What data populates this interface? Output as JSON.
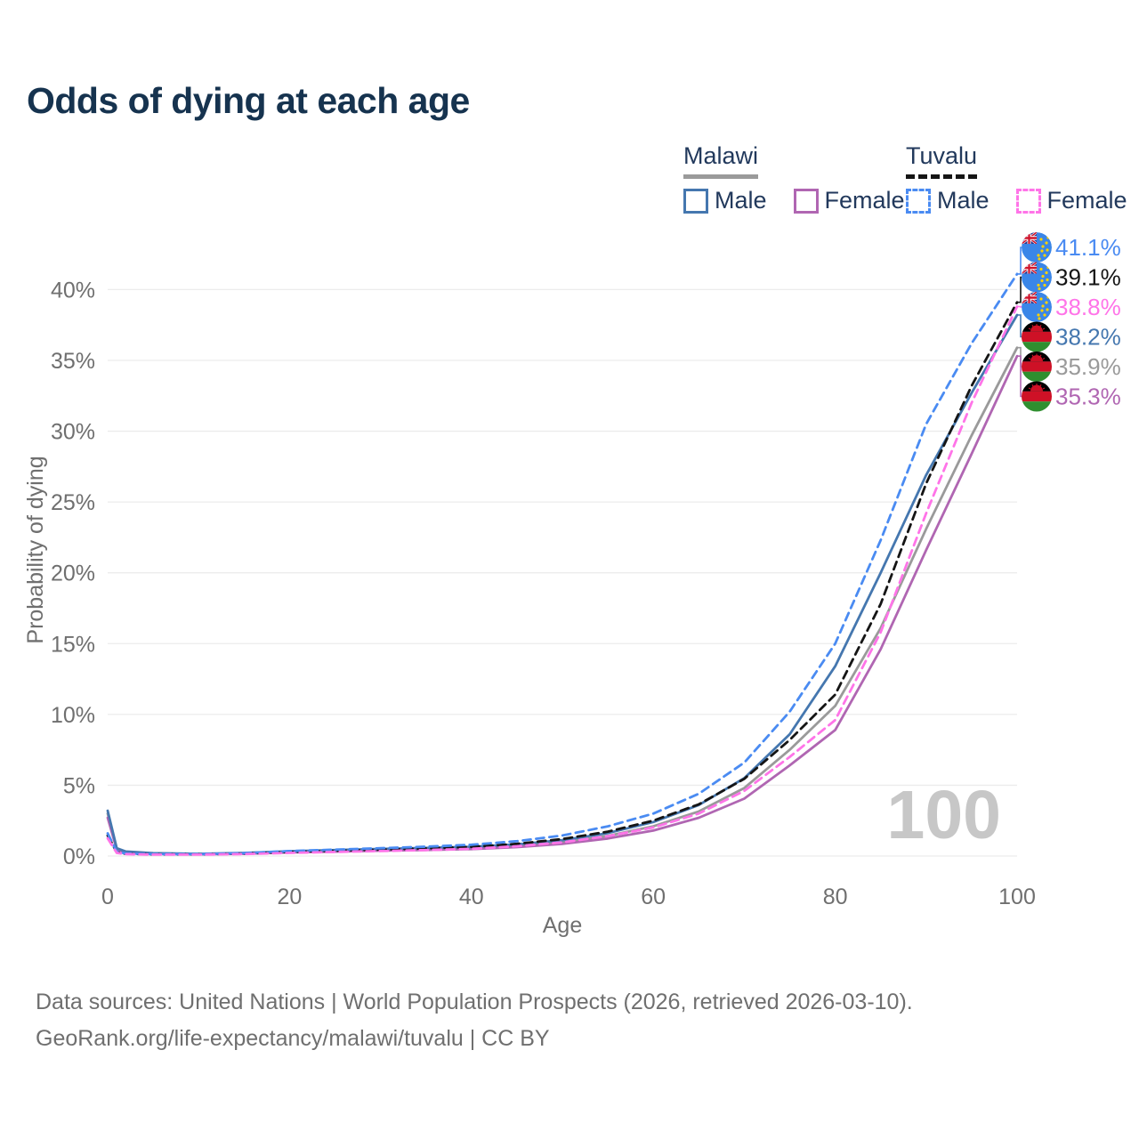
{
  "title": "Odds of dying at each age",
  "legend": {
    "groups": [
      {
        "id": "malawi",
        "label": "Malawi",
        "line_style": "solid",
        "line_color": "#9a9a9a",
        "items": [
          {
            "label": "Male"
          },
          {
            "label": "Female"
          }
        ]
      },
      {
        "id": "tuvalu",
        "label": "Tuvalu",
        "line_style": "dashed",
        "line_color": "#151515",
        "items": [
          {
            "label": "Male"
          },
          {
            "label": "Female"
          }
        ]
      }
    ]
  },
  "watermark": "100",
  "footer": {
    "line1": "Data sources: United Nations | World Population Prospects (2026, retrieved 2026-03-10).",
    "line2": "GeoRank.org/life-expectancy/malawi/tuvalu | CC BY"
  },
  "chart_data": {
    "type": "line",
    "title": "Odds of dying at each age",
    "xlabel": "Age",
    "ylabel": "Probability of dying",
    "xlim": [
      0,
      100
    ],
    "ylim_pct": [
      0,
      43
    ],
    "x_ticks": [
      0,
      20,
      40,
      60,
      80,
      100
    ],
    "y_ticks": [
      "0%",
      "5%",
      "10%",
      "15%",
      "20%",
      "25%",
      "30%",
      "35%",
      "40%"
    ],
    "grid": "horizontal",
    "legend_position": "top-right",
    "ages": [
      0,
      1,
      2,
      5,
      10,
      15,
      20,
      25,
      30,
      35,
      40,
      45,
      50,
      55,
      60,
      65,
      70,
      75,
      80,
      85,
      90,
      95,
      100
    ],
    "series": [
      {
        "name": "Tuvalu Male",
        "country": "Tuvalu",
        "sex": "Male",
        "color": "#4a8bf2",
        "dashed": true,
        "end_label": "41.1%",
        "end_value": 41.1,
        "values": [
          1.6,
          0.3,
          0.18,
          0.13,
          0.13,
          0.2,
          0.35,
          0.45,
          0.55,
          0.66,
          0.8,
          1.05,
          1.45,
          2.1,
          3.0,
          4.4,
          6.6,
          10.2,
          15.0,
          22.3,
          30.5,
          36.2,
          41.1
        ]
      },
      {
        "name": "Tuvalu Both sexes",
        "country": "Tuvalu",
        "sex": "Both sexes",
        "color": "#151515",
        "dashed": true,
        "end_label": "39.1%",
        "end_value": 39.1,
        "values": [
          1.45,
          0.27,
          0.16,
          0.12,
          0.12,
          0.17,
          0.29,
          0.37,
          0.45,
          0.54,
          0.65,
          0.86,
          1.2,
          1.72,
          2.5,
          3.65,
          5.45,
          8.2,
          11.4,
          17.8,
          26.3,
          33.2,
          39.1
        ]
      },
      {
        "name": "Tuvalu Female",
        "country": "Tuvalu",
        "sex": "Female",
        "color": "#ff74e8",
        "dashed": true,
        "end_label": "38.8%",
        "end_value": 38.8,
        "values": [
          1.25,
          0.22,
          0.13,
          0.1,
          0.1,
          0.14,
          0.22,
          0.29,
          0.35,
          0.42,
          0.51,
          0.69,
          0.97,
          1.4,
          2.02,
          3.0,
          4.6,
          7.0,
          9.6,
          15.8,
          24.2,
          32.0,
          38.8
        ]
      },
      {
        "name": "Malawi Male",
        "country": "Malawi",
        "sex": "Male",
        "color": "#4577af",
        "dashed": false,
        "end_label": "38.2%",
        "end_value": 38.2,
        "values": [
          3.2,
          0.55,
          0.32,
          0.2,
          0.16,
          0.22,
          0.33,
          0.42,
          0.5,
          0.57,
          0.65,
          0.82,
          1.12,
          1.62,
          2.4,
          3.6,
          5.5,
          8.6,
          13.4,
          20.0,
          26.9,
          32.7,
          38.2
        ]
      },
      {
        "name": "Malawi Both sexes",
        "country": "Malawi",
        "sex": "Both sexes",
        "color": "#9a9a9a",
        "dashed": false,
        "end_label": "35.9%",
        "end_value": 35.9,
        "values": [
          3.0,
          0.5,
          0.29,
          0.18,
          0.14,
          0.19,
          0.29,
          0.37,
          0.44,
          0.5,
          0.57,
          0.72,
          0.98,
          1.42,
          2.1,
          3.15,
          4.8,
          7.5,
          10.6,
          16.1,
          23.1,
          29.7,
          35.9
        ]
      },
      {
        "name": "Malawi Female",
        "country": "Malawi",
        "sex": "Female",
        "color": "#b066b2",
        "dashed": false,
        "end_label": "35.3%",
        "end_value": 35.3,
        "values": [
          2.7,
          0.45,
          0.26,
          0.16,
          0.12,
          0.16,
          0.25,
          0.31,
          0.38,
          0.43,
          0.49,
          0.63,
          0.86,
          1.24,
          1.8,
          2.7,
          4.05,
          6.4,
          8.9,
          14.6,
          21.6,
          28.4,
          35.3
        ]
      }
    ],
    "flag_colors": {
      "tuvalu_blue": "#3a86e8",
      "union_jack_navy": "#27348b",
      "union_jack_red": "#cf142b",
      "star_yellow": "#ffd100",
      "malawi_black": "#000000",
      "malawi_red": "#ce1126",
      "malawi_green": "#2f8f2f"
    },
    "style_colors": {
      "grid": "#ececec",
      "axis_text": "#6f6f6f",
      "watermark": "#c7c7c7",
      "title": "#16334f",
      "legend_text": "#22395c"
    }
  }
}
